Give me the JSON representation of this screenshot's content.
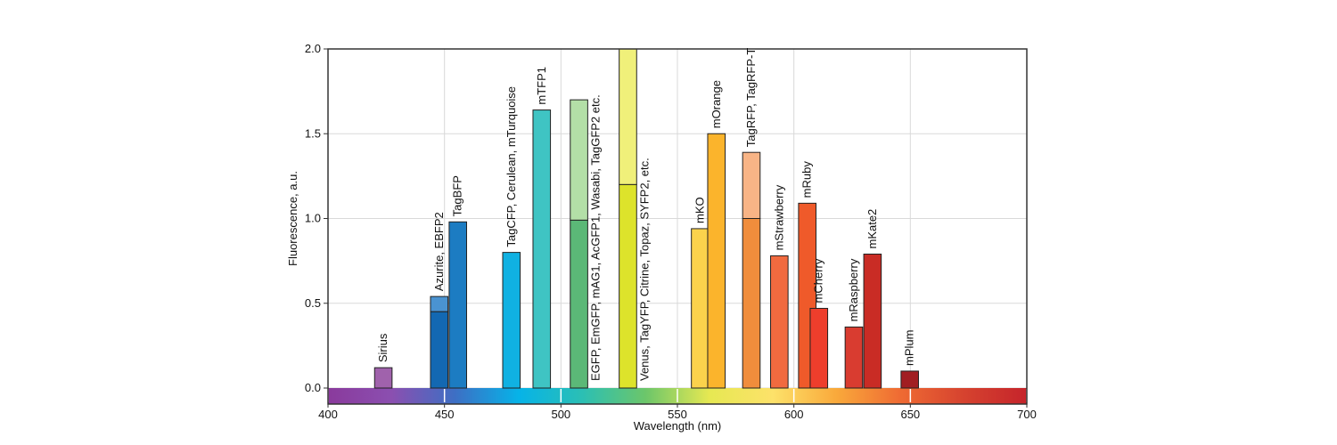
{
  "chart_data": {
    "type": "bar",
    "title": "",
    "xlabel": "Wavelength (nm)",
    "ylabel": "Fluorescence, a.u.",
    "xlim": [
      400,
      700
    ],
    "ylim": [
      0,
      2.0
    ],
    "xticks": [
      "400",
      "450",
      "500",
      "550",
      "600",
      "650",
      "700"
    ],
    "yticks": [
      "0.0",
      "0.5",
      "1.0",
      "1.5",
      "2.0"
    ],
    "grid": true,
    "bars": [
      {
        "label": "Sirius",
        "x0": 420,
        "x1": 427.5,
        "value": 0.12,
        "split": null,
        "color": "#a062ac",
        "light": null
      },
      {
        "label": "Azurite, EBFP2",
        "x0": 444,
        "x1": 451.5,
        "value": 0.54,
        "split": 0.45,
        "color": "#1368b2",
        "light": "#4a93d1"
      },
      {
        "label": "TagBFP",
        "x0": 452,
        "x1": 459.5,
        "value": 0.98,
        "split": null,
        "color": "#1c7cc2",
        "light": null
      },
      {
        "label": "TagCFP, Cerulean, mTurquoise",
        "x0": 475,
        "x1": 482.5,
        "value": 0.8,
        "split": null,
        "color": "#10b1e2",
        "light": null
      },
      {
        "label": "mTFP1",
        "x0": 488,
        "x1": 495.5,
        "value": 1.64,
        "split": null,
        "color": "#3fc4c3",
        "light": null
      },
      {
        "label": "EGFP, EmGFP, mAG1, AcGFP1, Wasabi, TagGFP2 etc.",
        "x0": 504,
        "x1": 511.5,
        "value": 1.7,
        "split": 0.99,
        "color": "#5bb877",
        "light": "#b3dfa7"
      },
      {
        "label": "Venus, TagYFP, Citrine, Topaz, SYFP2, etc.",
        "x0": 525,
        "x1": 532.5,
        "value": 2.0,
        "split": 1.2,
        "color": "#dde32b",
        "light": "#f0f07a"
      },
      {
        "label": "mKO",
        "x0": 556,
        "x1": 563.5,
        "value": 0.94,
        "split": null,
        "color": "#fbd24c",
        "light": null
      },
      {
        "label": "mOrange",
        "x0": 563,
        "x1": 570.5,
        "value": 1.5,
        "split": null,
        "color": "#fbb42c",
        "light": null
      },
      {
        "label": "TagRFP, TagRFP-T",
        "x0": 578,
        "x1": 585.5,
        "value": 1.39,
        "split": 1.0,
        "color": "#f08d3c",
        "light": "#f8b486"
      },
      {
        "label": "mStrawberry",
        "x0": 590,
        "x1": 597.5,
        "value": 0.78,
        "split": null,
        "color": "#f16a3f",
        "light": null
      },
      {
        "label": "mRuby",
        "x0": 602,
        "x1": 609.5,
        "value": 1.09,
        "split": null,
        "color": "#ef5a2a",
        "light": null
      },
      {
        "label": "mCherry",
        "x0": 607,
        "x1": 614.5,
        "value": 0.47,
        "split": null,
        "color": "#ee3e2c",
        "light": null
      },
      {
        "label": "mRaspberry",
        "x0": 622,
        "x1": 629.5,
        "value": 0.36,
        "split": null,
        "color": "#d93c30",
        "light": null
      },
      {
        "label": "mKate2",
        "x0": 630,
        "x1": 637.5,
        "value": 0.79,
        "split": null,
        "color": "#c92c25",
        "light": null
      },
      {
        "label": "mPlum",
        "x0": 646,
        "x1": 653.5,
        "value": 0.1,
        "split": null,
        "color": "#a11e22",
        "light": null
      }
    ],
    "spectrum_colors": [
      "#8a3a9c",
      "#8b4fb0",
      "#3d6fc4",
      "#06b3e8",
      "#2bbfb4",
      "#6cc66a",
      "#e6e852",
      "#fde26a",
      "#f9a93b",
      "#ef6b33",
      "#d6432f",
      "#c5242b"
    ]
  }
}
